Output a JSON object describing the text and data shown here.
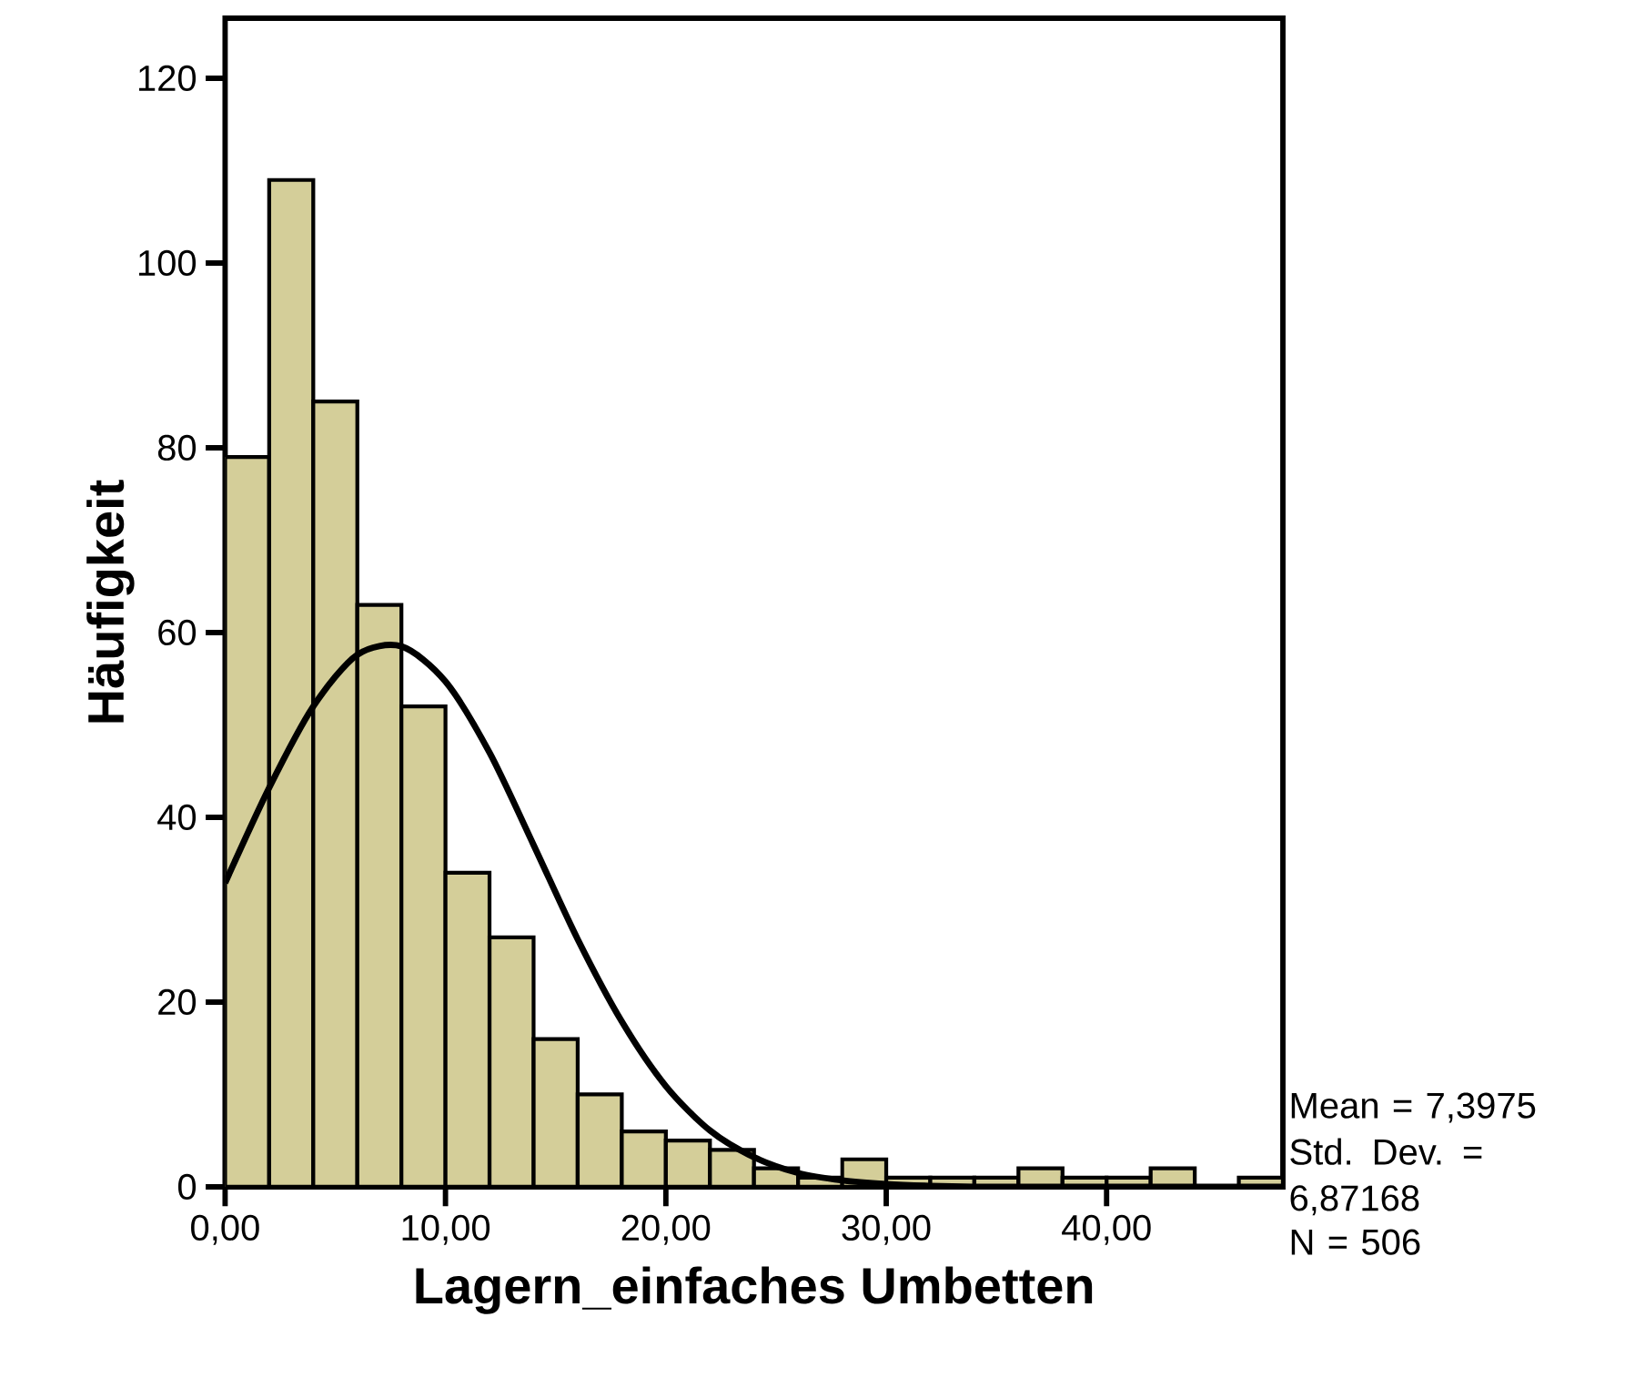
{
  "chart_data": {
    "type": "histogram",
    "xlabel": "Lagern_einfaches Umbetten",
    "ylabel": "Häufigkeit",
    "bins": [
      0,
      2,
      4,
      6,
      8,
      10,
      12,
      14,
      16,
      18,
      20,
      22,
      24,
      26,
      28,
      30,
      32,
      34,
      36,
      38,
      40,
      42,
      44,
      46,
      48
    ],
    "values": [
      79,
      109,
      85,
      63,
      52,
      34,
      27,
      16,
      10,
      6,
      5,
      4,
      2,
      1,
      3,
      1,
      1,
      1,
      2,
      1,
      1,
      2,
      null,
      1
    ],
    "color": "#d4ce99",
    "series": [
      {
        "type": "line",
        "color": "#000000",
        "x": [
          0,
          2,
          4,
          6,
          8,
          10,
          12,
          14,
          16,
          18,
          20,
          22,
          24,
          26,
          28,
          30,
          32,
          34,
          36,
          40,
          44,
          48
        ],
        "values": [
          32.9,
          43.2,
          52.0,
          57.6,
          58.5,
          54.7,
          47.0,
          37.0,
          26.8,
          17.9,
          10.9,
          6.1,
          3.2,
          1.5,
          0.7,
          0.3,
          0.1,
          0,
          0,
          0,
          0,
          0
        ]
      }
    ],
    "xlim": [
      0,
      48
    ],
    "ylim": [
      0,
      126.5
    ],
    "xticks": [
      {
        "value": 0,
        "label": "0,00"
      },
      {
        "value": 10,
        "label": "10,00"
      },
      {
        "value": 20,
        "label": "20,00"
      },
      {
        "value": 30,
        "label": "30,00"
      },
      {
        "value": 40,
        "label": "40,00"
      }
    ],
    "yticks": [
      0,
      20,
      40,
      60,
      80,
      100,
      120
    ],
    "grid": false,
    "annotations": [
      "Mean = 7,3975",
      "Std. Dev. = 6,87168",
      "N = 506"
    ]
  }
}
